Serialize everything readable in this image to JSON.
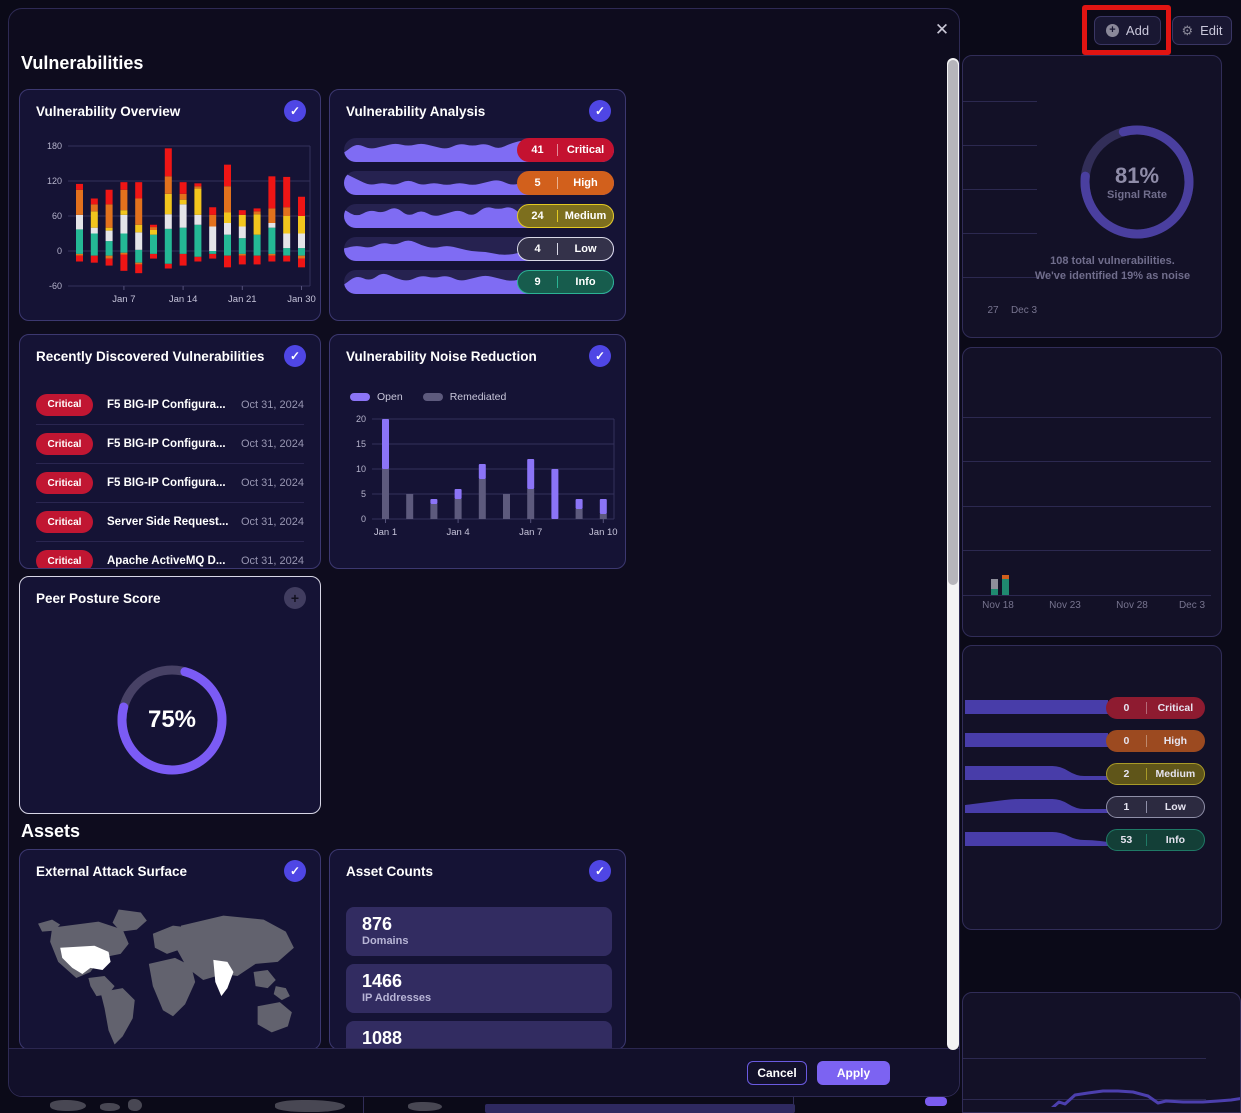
{
  "icons": {
    "close": "✕",
    "check": "✓",
    "plus": "+",
    "gear": "⚙",
    "add_plus": "+"
  },
  "colors": {
    "accent_purple": "#7c63f2",
    "spark_purple": "#7f6cf3",
    "bg_band_purple": "#4f43b8",
    "teal": "#24b895",
    "white_seg": "#e4e4e8",
    "yellow": "#f2c51d",
    "orange": "#e2711d",
    "red": "#ef1515",
    "open": "#8b74f6",
    "remediated": "#5d5a7d",
    "annotation_red": "#e11412"
  },
  "modal": {
    "vulnerabilities_title": "Vulnerabilities",
    "assets_title": "Assets",
    "footer": {
      "cancel_label": "Cancel",
      "apply_label": "Apply"
    }
  },
  "widgets": {
    "overview": {
      "title": "Vulnerability Overview",
      "chart_data": {
        "type": "bar",
        "stacked": true,
        "ylim": [
          -60,
          180
        ],
        "yticks": [
          180,
          120,
          60,
          0,
          -60
        ],
        "xtick_labels": [
          "Jan 7",
          "Jan 14",
          "Jan 21",
          "Jan 30"
        ],
        "xtick_positions": [
          3,
          7,
          11,
          15
        ],
        "pos_series": [
          "teal",
          "white",
          "yellow",
          "orange",
          "red"
        ],
        "neg_series": [
          "teal",
          "orange",
          "red"
        ],
        "bars": [
          {
            "pos": [
              37,
              25,
              0,
              43,
              10
            ],
            "neg": [
              5,
              3,
              10
            ]
          },
          {
            "pos": [
              30,
              10,
              28,
              12,
              10
            ],
            "neg": [
              8,
              0,
              12
            ]
          },
          {
            "pos": [
              17,
              18,
              5,
              40,
              25
            ],
            "neg": [
              8,
              5,
              12
            ]
          },
          {
            "pos": [
              30,
              32,
              8,
              35,
              13
            ],
            "neg": [
              3,
              3,
              28
            ]
          },
          {
            "pos": [
              2,
              30,
              13,
              45,
              28
            ],
            "neg": [
              20,
              3,
              15
            ]
          },
          {
            "pos": [
              28,
              0,
              8,
              5,
              4
            ],
            "neg": [
              5,
              0,
              8
            ]
          },
          {
            "pos": [
              38,
              25,
              35,
              30,
              48
            ],
            "neg": [
              22,
              0,
              8
            ]
          },
          {
            "pos": [
              40,
              40,
              8,
              10,
              20
            ],
            "neg": [
              5,
              0,
              20
            ]
          },
          {
            "pos": [
              45,
              17,
              45,
              4,
              5
            ],
            "neg": [
              10,
              0,
              8
            ]
          },
          {
            "pos": [
              0,
              42,
              0,
              20,
              13
            ],
            "neg": [
              5,
              0,
              8
            ]
          },
          {
            "pos": [
              28,
              20,
              18,
              45,
              37
            ],
            "neg": [
              8,
              0,
              20
            ]
          },
          {
            "pos": [
              22,
              20,
              20,
              0,
              8
            ],
            "neg": [
              5,
              3,
              15
            ]
          },
          {
            "pos": [
              28,
              0,
              35,
              5,
              5
            ],
            "neg": [
              8,
              0,
              15
            ]
          },
          {
            "pos": [
              40,
              8,
              0,
              25,
              55
            ],
            "neg": [
              5,
              3,
              10
            ]
          },
          {
            "pos": [
              5,
              25,
              30,
              15,
              52
            ],
            "neg": [
              8,
              0,
              10
            ]
          },
          {
            "pos": [
              5,
              25,
              30,
              0,
              33
            ],
            "neg": [
              8,
              5,
              15
            ]
          }
        ]
      }
    },
    "analysis": {
      "title": "Vulnerability Analysis",
      "rows": [
        {
          "count": "41",
          "label": "Critical",
          "fill": "#c41230",
          "border": "#c41230",
          "divider": "rgba(255,255,255,0.5)",
          "spark": [
            3,
            6,
            4,
            5,
            6,
            5,
            6,
            5,
            4,
            6,
            5,
            6,
            4,
            6,
            7,
            5,
            7,
            6,
            5,
            6,
            5,
            4
          ]
        },
        {
          "count": "5",
          "label": "High",
          "fill": "#d2601c",
          "border": "#d2601c",
          "divider": "rgba(255,255,255,0.5)",
          "spark": [
            7,
            5,
            3,
            4,
            3,
            5,
            3,
            4,
            3,
            4,
            3,
            4,
            5,
            3,
            4,
            4,
            5,
            4,
            6,
            5,
            6,
            5
          ]
        },
        {
          "count": "24",
          "label": "Medium",
          "fill": "#7d6f1e",
          "border": "#e3c922",
          "divider": "#e3c922",
          "spark": [
            5,
            3,
            5,
            4,
            6,
            3,
            5,
            3,
            4,
            5,
            3,
            6,
            5,
            6,
            3,
            4,
            5,
            4,
            3,
            4,
            5,
            6
          ]
        },
        {
          "count": "4",
          "label": "Low",
          "fill": "#34324a",
          "border": "#d9d9e6",
          "divider": "#d9d9e6",
          "spark": [
            4,
            5,
            4,
            6,
            5,
            7,
            5,
            4,
            5,
            4,
            3,
            3,
            2,
            2,
            3,
            2,
            4,
            3,
            5,
            4,
            6,
            5
          ]
        },
        {
          "count": "9",
          "label": "Info",
          "fill": "#175c4d",
          "border": "#2bb394",
          "divider": "#2bb394",
          "spark": [
            3,
            6,
            4,
            7,
            5,
            4,
            6,
            5,
            6,
            4,
            5,
            6,
            5,
            4,
            5,
            6,
            4,
            5,
            4,
            6,
            5,
            4
          ]
        }
      ]
    },
    "recent": {
      "title": "Recently Discovered Vulnerabilities",
      "pill_color": "#c11632",
      "rows": [
        {
          "severity": "Critical",
          "name": "F5 BIG-IP Configura...",
          "date": "Oct 31, 2024"
        },
        {
          "severity": "Critical",
          "name": "F5 BIG-IP Configura...",
          "date": "Oct 31, 2024"
        },
        {
          "severity": "Critical",
          "name": "F5 BIG-IP Configura...",
          "date": "Oct 31, 2024"
        },
        {
          "severity": "Critical",
          "name": "Server Side Request...",
          "date": "Oct 31, 2024"
        },
        {
          "severity": "Critical",
          "name": "Apache ActiveMQ D...",
          "date": "Oct 31, 2024"
        }
      ]
    },
    "noise": {
      "title": "Vulnerability Noise Reduction",
      "legend": [
        {
          "label": "Open",
          "color": "#8b74f6"
        },
        {
          "label": "Remediated",
          "color": "#5d5a7d"
        }
      ],
      "chart_data": {
        "type": "bar",
        "stacked": true,
        "ylim": [
          0,
          20
        ],
        "yticks": [
          20,
          15,
          10,
          5,
          0
        ],
        "xtick_labels": [
          "Jan 1",
          "Jan 4",
          "Jan 7",
          "Jan 10"
        ],
        "xtick_positions": [
          0,
          3,
          6,
          9
        ],
        "series": [
          {
            "name": "Remediated",
            "values": [
              10,
              5,
              3,
              4,
              8,
              5,
              6,
              0,
              2,
              1
            ]
          },
          {
            "name": "Open",
            "values": [
              10,
              0,
              1,
              2,
              3,
              0,
              6,
              10,
              2,
              3
            ]
          }
        ]
      }
    },
    "peer": {
      "title": "Peer Posture Score",
      "percent": 75,
      "percent_text": "75%"
    },
    "attack_surface": {
      "title": "External Attack Surface",
      "highlighted_regions": [
        "United States",
        "India"
      ]
    },
    "asset_counts": {
      "title": "Asset Counts",
      "tiles": [
        {
          "value": "876",
          "label": "Domains"
        },
        {
          "value": "1466",
          "label": "IP Addresses"
        },
        {
          "value": "1088",
          "label": ""
        }
      ]
    }
  },
  "background": {
    "add_label": "Add",
    "edit_label": "Edit",
    "signal_gauge": {
      "percent": 81,
      "percent_text": "81%",
      "label": "Signal Rate",
      "caption_line1": "108 total vulnerabilities.",
      "caption_line2": "We've identified 19% as noise",
      "x_ticks": [
        "27",
        "Dec 3"
      ]
    },
    "trend_card": {
      "x_ticks": [
        "Nov 18",
        "Nov 23",
        "Nov 28",
        "Dec 3"
      ],
      "bars": [
        {
          "segments": [
            {
              "color": "#8e8e9a",
              "h": 10
            },
            {
              "color": "#1f8a70",
              "h": 6
            }
          ]
        },
        {
          "segments": [
            {
              "color": "#d2601c",
              "h": 4
            },
            {
              "color": "#1f8a70",
              "h": 16
            }
          ]
        }
      ]
    },
    "severity_summary": [
      {
        "count": "0",
        "label": "Critical",
        "fill": "#8e1b30",
        "border": "#8e1b30",
        "divider": "rgba(255,255,255,0.35)",
        "band": [
          1,
          1,
          1,
          1,
          1,
          1,
          1,
          1,
          1,
          1
        ]
      },
      {
        "count": "0",
        "label": "High",
        "fill": "#9c4a20",
        "border": "#9c4a20",
        "divider": "rgba(255,255,255,0.35)",
        "band": [
          1,
          1,
          1,
          1,
          1,
          1,
          1,
          1,
          1,
          1
        ]
      },
      {
        "count": "2",
        "label": "Medium",
        "fill": "#5f5519",
        "border": "#a89a28",
        "divider": "#a89a28",
        "band": [
          7,
          7,
          7,
          7,
          7,
          7,
          7,
          2,
          2,
          2
        ]
      },
      {
        "count": "1",
        "label": "Low",
        "fill": "#2c2a40",
        "border": "#8f8fa8",
        "divider": "#8f8fa8",
        "band": [
          4,
          5,
          6,
          7,
          7,
          7,
          7,
          2,
          2,
          2
        ]
      },
      {
        "count": "53",
        "label": "Info",
        "fill": "#133f37",
        "border": "#1f7a66",
        "divider": "#1f7a66",
        "band": [
          7,
          7,
          7,
          7,
          7,
          7,
          7,
          3,
          3,
          2
        ]
      }
    ],
    "trend_line": {
      "color": "#4c3fae",
      "points": [
        [
          70,
          128
        ],
        [
          80,
          123
        ],
        [
          88,
          123
        ],
        [
          96,
          116
        ],
        [
          102,
          118
        ],
        [
          112,
          109
        ],
        [
          125,
          107
        ],
        [
          140,
          105
        ],
        [
          155,
          105
        ],
        [
          170,
          106
        ],
        [
          185,
          110
        ],
        [
          195,
          117
        ],
        [
          203,
          115
        ],
        [
          220,
          116
        ],
        [
          240,
          116
        ],
        [
          255,
          115
        ],
        [
          268,
          114
        ],
        [
          281,
          112
        ]
      ]
    }
  }
}
